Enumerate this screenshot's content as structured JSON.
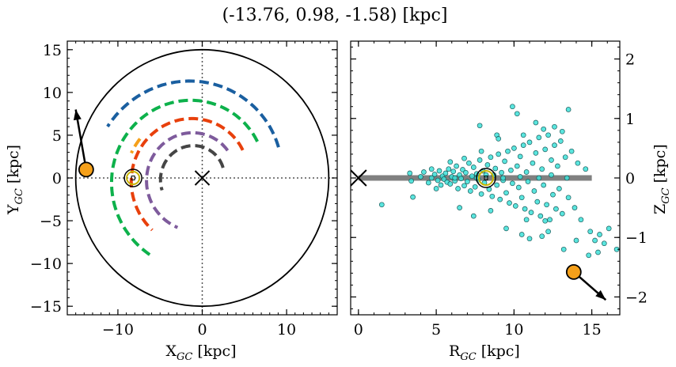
{
  "title": "(-13.76, 0.98, -1.58) [kpc]",
  "chart_data": [
    {
      "type": "scatter",
      "panel": "left",
      "xlabel": {
        "main": "X",
        "sub": "GC",
        "unit": " [kpc]"
      },
      "ylabel": {
        "main": "Y",
        "sub": "GC",
        "unit": " [kpc]"
      },
      "xlim": [
        -16,
        16
      ],
      "ylim": [
        -16,
        16
      ],
      "xticks": [
        -10,
        0,
        10
      ],
      "yticks": [
        -15,
        -10,
        -5,
        0,
        5,
        10,
        15
      ],
      "xtick_labels": [
        "−10",
        "0",
        "10"
      ],
      "ytick_labels": [
        "−15",
        "−10",
        "−5",
        "0",
        "5",
        "10",
        "15"
      ],
      "galaxy_circle_radius": 15,
      "center_marker": {
        "x": 0,
        "y": 0,
        "shape": "x"
      },
      "sun": {
        "x": -8.2,
        "y": 0.0
      },
      "target": {
        "x": -13.76,
        "y": 0.98,
        "color": "#f5a01a"
      },
      "velocity_arrow": {
        "from": [
          -13.76,
          0.98
        ],
        "to": [
          -15.0,
          8.0
        ]
      },
      "arms": [
        {
          "color": "#1a5fa0",
          "radius": 10.5,
          "start_deg": 20,
          "end_deg": 150
        },
        {
          "color": "#0db14b",
          "radius": 8.5,
          "start_deg": 30,
          "end_deg": 240
        },
        {
          "color": "#e8400c",
          "radius": 6.5,
          "start_deg": 30,
          "end_deg": 230
        },
        {
          "color": "#7e5b9c",
          "radius": 5.0,
          "start_deg": 40,
          "end_deg": 250
        },
        {
          "color": "#454545",
          "radius": 3.5,
          "start_deg": 20,
          "end_deg": 200
        },
        {
          "color": "#f5a01a",
          "radius": 8.0,
          "start_deg": 145,
          "end_deg": 160
        }
      ]
    },
    {
      "type": "scatter",
      "panel": "right",
      "xlabel": {
        "main": "R",
        "sub": "GC",
        "unit": " [kpc]"
      },
      "ylabel": {
        "main": "Z",
        "sub": "GC",
        "unit": " [kpc]"
      },
      "xlim": [
        -0.5,
        16.8
      ],
      "ylim": [
        -2.3,
        2.3
      ],
      "xticks": [
        0,
        5,
        10,
        15
      ],
      "yticks": [
        -2,
        -1,
        0,
        1,
        2
      ],
      "xtick_labels": [
        "0",
        "5",
        "10",
        "15"
      ],
      "ytick_labels": [
        "−2",
        "−1",
        "0",
        "1",
        "2"
      ],
      "disk_line": {
        "x": [
          0,
          15
        ],
        "z": 0,
        "color": "#808080"
      },
      "center_marker": {
        "x": 0,
        "z": 0,
        "shape": "x"
      },
      "sun": {
        "x": 8.2,
        "z": 0.0
      },
      "target": {
        "x": 13.84,
        "z": -1.58,
        "color": "#f5a01a"
      },
      "velocity_arrow": {
        "from": [
          13.84,
          -1.58
        ],
        "to": [
          15.9,
          -2.05
        ]
      },
      "star_color": "#3de0d8",
      "stars": [
        [
          3.3,
          0.08
        ],
        [
          3.4,
          -0.05
        ],
        [
          4.0,
          0.02
        ],
        [
          4.2,
          0.1
        ],
        [
          4.5,
          -0.08
        ],
        [
          4.7,
          0.0
        ],
        [
          4.9,
          0.06
        ],
        [
          5.1,
          -0.04
        ],
        [
          5.2,
          0.12
        ],
        [
          5.3,
          -0.12
        ],
        [
          5.4,
          0.03
        ],
        [
          5.5,
          -0.02
        ],
        [
          5.6,
          0.08
        ],
        [
          5.7,
          -0.07
        ],
        [
          5.8,
          0.15
        ],
        [
          5.9,
          -0.1
        ],
        [
          6.0,
          0.02
        ],
        [
          6.1,
          0.11
        ],
        [
          6.2,
          -0.05
        ],
        [
          6.3,
          0.2
        ],
        [
          6.4,
          -0.18
        ],
        [
          6.5,
          0.05
        ],
        [
          6.6,
          -0.01
        ],
        [
          6.7,
          0.14
        ],
        [
          6.8,
          -0.13
        ],
        [
          6.9,
          0.09
        ],
        [
          7.0,
          -0.06
        ],
        [
          7.1,
          0.25
        ],
        [
          7.2,
          -0.22
        ],
        [
          7.3,
          0.03
        ],
        [
          7.4,
          0.18
        ],
        [
          7.5,
          -0.15
        ],
        [
          7.6,
          0.07
        ],
        [
          7.7,
          -0.03
        ],
        [
          7.8,
          0.3
        ],
        [
          7.9,
          -0.27
        ],
        [
          8.0,
          0.12
        ],
        [
          8.1,
          -0.08
        ],
        [
          8.3,
          0.22
        ],
        [
          8.4,
          -0.19
        ],
        [
          8.5,
          0.35
        ],
        [
          8.6,
          -0.31
        ],
        [
          8.7,
          0.05
        ],
        [
          8.8,
          0.16
        ],
        [
          8.9,
          -0.12
        ],
        [
          9.0,
          0.4
        ],
        [
          9.1,
          -0.36
        ],
        [
          9.2,
          0.09
        ],
        [
          9.3,
          -0.04
        ],
        [
          9.4,
          0.28
        ],
        [
          9.5,
          -0.25
        ],
        [
          9.6,
          0.45
        ],
        [
          9.7,
          -0.42
        ],
        [
          9.8,
          0.13
        ],
        [
          9.9,
          -0.09
        ],
        [
          10.0,
          0.5
        ],
        [
          10.1,
          -0.47
        ],
        [
          10.2,
          0.2
        ],
        [
          10.3,
          -0.16
        ],
        [
          10.4,
          0.36
        ],
        [
          10.5,
          -0.33
        ],
        [
          10.6,
          0.55
        ],
        [
          10.7,
          -0.52
        ],
        [
          10.8,
          0.1
        ],
        [
          10.9,
          -0.06
        ],
        [
          11.0,
          0.6
        ],
        [
          11.1,
          -0.58
        ],
        [
          11.2,
          0.25
        ],
        [
          11.3,
          -0.22
        ],
        [
          11.4,
          0.42
        ],
        [
          11.5,
          -0.4
        ],
        [
          11.6,
          0.68
        ],
        [
          11.7,
          -0.64
        ],
        [
          11.8,
          0.15
        ],
        [
          11.9,
          -0.12
        ],
        [
          12.0,
          0.48
        ],
        [
          12.1,
          -0.45
        ],
        [
          12.2,
          0.72
        ],
        [
          12.3,
          -0.7
        ],
        [
          12.4,
          0.3
        ],
        [
          12.5,
          -0.28
        ],
        [
          12.6,
          0.55
        ],
        [
          12.7,
          -0.52
        ],
        [
          12.8,
          0.2
        ],
        [
          12.9,
          -0.18
        ],
        [
          13.0,
          0.62
        ],
        [
          13.1,
          -0.6
        ],
        [
          13.3,
          0.35
        ],
        [
          13.5,
          -0.33
        ],
        [
          13.7,
          0.45
        ],
        [
          13.9,
          -0.5
        ],
        [
          14.1,
          0.25
        ],
        [
          14.3,
          -0.7
        ],
        [
          14.6,
          0.15
        ],
        [
          14.9,
          -0.9
        ],
        [
          15.2,
          -1.05
        ],
        [
          15.5,
          -0.95
        ],
        [
          15.8,
          -1.1
        ],
        [
          16.1,
          -0.85
        ],
        [
          16.6,
          -1.2
        ],
        [
          9.9,
          1.2
        ],
        [
          10.2,
          1.08
        ],
        [
          11.4,
          0.93
        ],
        [
          13.5,
          1.15
        ],
        [
          7.8,
          0.88
        ],
        [
          8.9,
          0.72
        ],
        [
          1.5,
          -0.45
        ],
        [
          3.5,
          -0.32
        ],
        [
          6.5,
          -0.5
        ],
        [
          7.4,
          -0.64
        ],
        [
          9.5,
          -0.85
        ],
        [
          10.5,
          -0.95
        ],
        [
          11.0,
          -1.02
        ],
        [
          11.8,
          -0.98
        ],
        [
          12.2,
          -0.9
        ],
        [
          13.2,
          -1.2
        ],
        [
          14.0,
          -1.05
        ],
        [
          14.8,
          -1.3
        ],
        [
          15.4,
          -1.25
        ],
        [
          12.0,
          -0.72
        ],
        [
          10.8,
          -0.7
        ],
        [
          8.5,
          -0.55
        ],
        [
          7.9,
          0.45
        ],
        [
          6.8,
          0.33
        ],
        [
          5.9,
          0.27
        ],
        [
          11.9,
          0.82
        ],
        [
          12.6,
          0.86
        ],
        [
          13.1,
          0.78
        ],
        [
          9.0,
          0.66
        ],
        [
          10.6,
          0.72
        ],
        [
          4.7,
          0.15
        ],
        [
          5.0,
          -0.18
        ],
        [
          6.2,
          0.0
        ],
        [
          7.6,
          0.0
        ],
        [
          8.2,
          0.05
        ],
        [
          9.3,
          0.0
        ],
        [
          10.4,
          0.02
        ],
        [
          11.6,
          0.0
        ],
        [
          12.4,
          0.05
        ],
        [
          13.4,
          0.0
        ]
      ]
    }
  ]
}
